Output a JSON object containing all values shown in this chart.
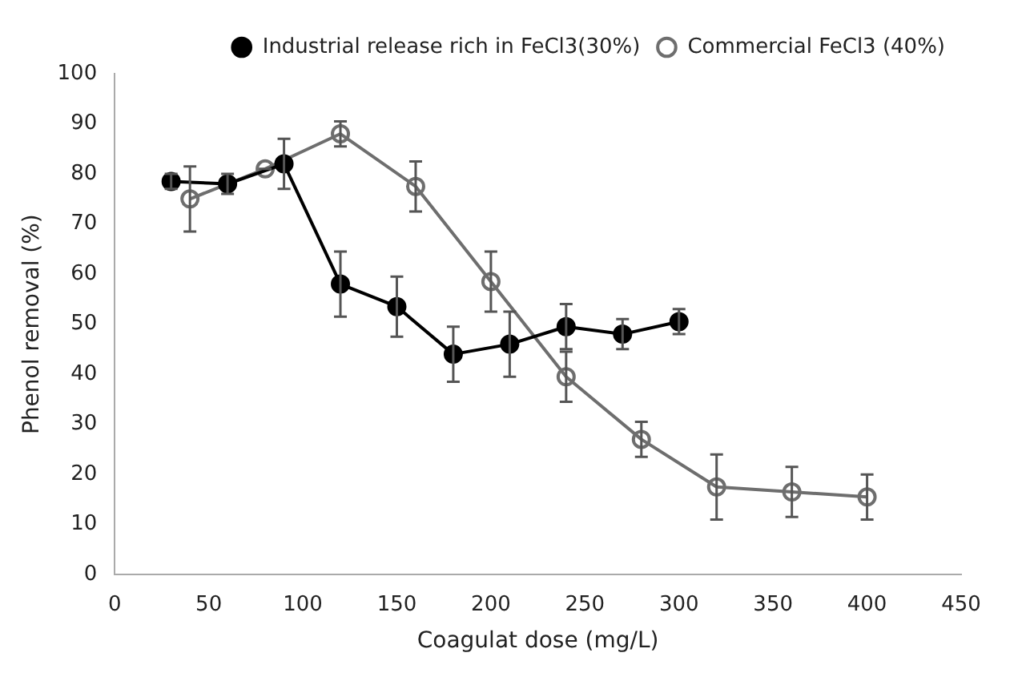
{
  "chart_data": {
    "type": "line",
    "xlabel": "Coagulat dose (mg/L)",
    "ylabel": "Phenol removal (%)",
    "xlim": [
      0,
      450
    ],
    "xticks": [
      0,
      50,
      100,
      150,
      200,
      250,
      300,
      350,
      400,
      450
    ],
    "ylim": [
      0,
      100
    ],
    "yticks": [
      0,
      10,
      20,
      30,
      40,
      50,
      60,
      70,
      80,
      90,
      100
    ],
    "grid": false,
    "legend": "top right",
    "series": [
      {
        "name": "Industrial release rich in FeCl3(30%)",
        "color": "#000000",
        "marker": "circle",
        "x": [
          30,
          60,
          90,
          120,
          150,
          180,
          210,
          240,
          270,
          300
        ],
        "values": [
          78.5,
          78,
          82,
          58,
          53.5,
          44,
          46,
          49.5,
          48,
          50.5
        ],
        "errors": [
          1.5,
          2,
          5,
          6.5,
          6,
          5.5,
          6.5,
          4.5,
          3,
          2.5
        ]
      },
      {
        "name": "Commercial FeCl3 (40%)",
        "color": "#6e6e6e",
        "marker": "circle",
        "x": [
          40,
          80,
          120,
          160,
          200,
          240,
          280,
          320,
          360,
          400
        ],
        "values": [
          75,
          81,
          88,
          77.5,
          58.5,
          39.5,
          27,
          17.5,
          16.5,
          15.5
        ],
        "errors": [
          6.5,
          0,
          2.5,
          5,
          6,
          5,
          3.5,
          6.5,
          5,
          4.5
        ]
      }
    ]
  }
}
